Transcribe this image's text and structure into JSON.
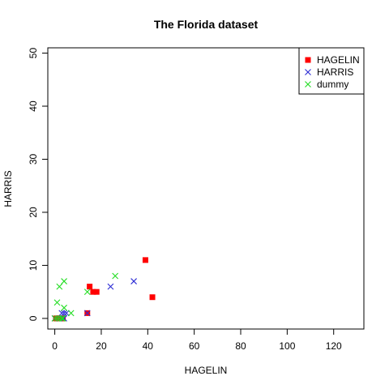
{
  "chart_data": {
    "type": "scatter",
    "title": "The Florida dataset",
    "xlabel": "HAGELIN",
    "ylabel": "HARRIS",
    "xlim": [
      -3,
      133
    ],
    "ylim": [
      -2,
      51
    ],
    "xticks": [
      0,
      20,
      40,
      60,
      80,
      100,
      120
    ],
    "yticks": [
      0,
      10,
      20,
      30,
      40,
      50
    ],
    "grid": false,
    "legend_position": "top-right",
    "series": [
      {
        "name": "HAGELIN",
        "marker": "square",
        "color": "#ff0000",
        "x": [
          15,
          16.5,
          18,
          39,
          42,
          14,
          1,
          2,
          3,
          3.5,
          0.5,
          1.5,
          2.5
        ],
        "y": [
          6,
          5,
          5,
          11,
          4,
          1,
          0,
          0,
          0,
          0,
          0,
          0,
          0
        ]
      },
      {
        "name": "HARRIS",
        "marker": "x",
        "color": "#2b2bd4",
        "x": [
          24,
          34,
          4,
          3,
          5,
          0,
          2,
          4,
          14
        ],
        "y": [
          6,
          7,
          1,
          1,
          1,
          0,
          0,
          0,
          1
        ]
      },
      {
        "name": "dummy",
        "marker": "x",
        "color": "#22dd22",
        "x": [
          2,
          4,
          26,
          1,
          4,
          7,
          14,
          1,
          3,
          0,
          2,
          3.5
        ],
        "y": [
          6,
          7,
          8,
          3,
          2,
          1,
          5,
          0,
          0,
          0,
          0,
          0
        ]
      }
    ]
  }
}
